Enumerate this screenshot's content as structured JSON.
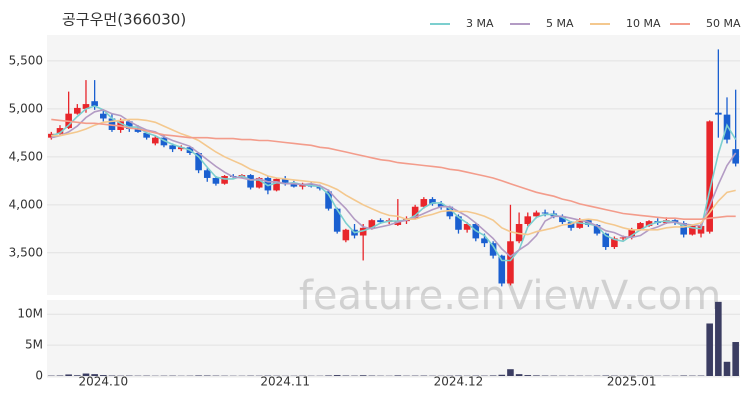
{
  "chart_data": {
    "type": "candlestick",
    "title": "공구우먼(366030)",
    "watermark": "feature.enViewV.com",
    "categories": [
      null,
      null,
      null,
      null,
      null,
      null,
      "2024.10",
      null,
      null,
      null,
      null,
      null,
      null,
      null,
      null,
      null,
      null,
      null,
      null,
      null,
      null,
      null,
      null,
      null,
      null,
      null,
      null,
      "2024.11",
      null,
      null,
      null,
      null,
      null,
      null,
      null,
      null,
      null,
      null,
      null,
      null,
      null,
      null,
      null,
      null,
      null,
      null,
      null,
      "2024.12",
      null,
      null,
      null,
      null,
      null,
      null,
      null,
      null,
      null,
      null,
      null,
      null,
      null,
      null,
      null,
      null,
      null,
      null,
      null,
      "2025.01",
      null,
      null,
      null,
      null,
      null,
      null,
      null,
      null,
      null,
      null,
      null,
      null
    ],
    "open": [
      4700,
      4740,
      4800,
      4950,
      5000,
      5080,
      4950,
      4900,
      4780,
      4870,
      4790,
      4750,
      4640,
      4700,
      4620,
      4580,
      4600,
      4540,
      4360,
      4280,
      4220,
      4300,
      4290,
      4310,
      4180,
      4280,
      4150,
      4270,
      4230,
      4190,
      4220,
      4190,
      4140,
      3960,
      3630,
      3740,
      3680,
      3760,
      3840,
      3820,
      3790,
      3830,
      3860,
      3980,
      4060,
      4010,
      3980,
      3880,
      3740,
      3800,
      3650,
      3600,
      3470,
      3180,
      3620,
      3800,
      3880,
      3920,
      3910,
      3880,
      3820,
      3760,
      3840,
      3790,
      3700,
      3560,
      3650,
      3660,
      3740,
      3780,
      3830,
      3810,
      3840,
      3810,
      3690,
      3700,
      3720,
      4960,
      4940,
      4580
    ],
    "high": [
      4760,
      4830,
      5180,
      5050,
      5300,
      5300,
      4980,
      4950,
      4900,
      4880,
      4830,
      4760,
      4720,
      4730,
      4640,
      4620,
      4610,
      4550,
      4380,
      4300,
      4310,
      4320,
      4320,
      4320,
      4290,
      4300,
      4280,
      4300,
      4250,
      4230,
      4240,
      4210,
      4160,
      3970,
      3750,
      3800,
      3800,
      3850,
      3860,
      3860,
      4060,
      3880,
      4000,
      4080,
      4080,
      4040,
      3990,
      3900,
      3820,
      3810,
      3700,
      3620,
      3480,
      4000,
      3920,
      3920,
      3940,
      3950,
      3940,
      3900,
      3830,
      3860,
      3850,
      3800,
      3710,
      3670,
      3680,
      3760,
      3820,
      3840,
      3860,
      3870,
      3850,
      3830,
      3790,
      3800,
      4880,
      5620,
      5120,
      5200
    ],
    "low": [
      4680,
      4730,
      4790,
      4940,
      4960,
      4990,
      4870,
      4760,
      4750,
      4760,
      4750,
      4680,
      4620,
      4600,
      4550,
      4560,
      4520,
      4330,
      4240,
      4200,
      4210,
      4270,
      4280,
      4160,
      4170,
      4110,
      4140,
      4200,
      4180,
      4160,
      4180,
      4150,
      3940,
      3700,
      3610,
      3650,
      3420,
      3740,
      3800,
      3800,
      3780,
      3800,
      3850,
      3960,
      3990,
      3950,
      3850,
      3700,
      3710,
      3620,
      3560,
      3440,
      3150,
      3160,
      3600,
      3780,
      3860,
      3880,
      3860,
      3800,
      3730,
      3750,
      3770,
      3680,
      3530,
      3540,
      3630,
      3640,
      3730,
      3770,
      3790,
      3800,
      3790,
      3660,
      3680,
      3660,
      3700,
      4700,
      4640,
      4400
    ],
    "close": [
      4740,
      4800,
      4950,
      5010,
      5050,
      5030,
      4900,
      4780,
      4870,
      4790,
      4760,
      4700,
      4700,
      4620,
      4580,
      4600,
      4540,
      4360,
      4280,
      4220,
      4300,
      4290,
      4310,
      4180,
      4280,
      4150,
      4270,
      4230,
      4190,
      4220,
      4190,
      4170,
      3960,
      3720,
      3740,
      3680,
      3760,
      3840,
      3820,
      3840,
      3830,
      3860,
      3980,
      4060,
      4010,
      3980,
      3880,
      3740,
      3800,
      3650,
      3600,
      3470,
      3180,
      3620,
      3800,
      3880,
      3920,
      3910,
      3880,
      3820,
      3760,
      3840,
      3790,
      3700,
      3560,
      3650,
      3660,
      3740,
      3810,
      3830,
      3810,
      3840,
      3810,
      3690,
      3780,
      3780,
      4870,
      4940,
      4680,
      4430
    ],
    "up_color": "#e8262b",
    "down_color": "#1a5fd0",
    "ylim": [
      3060,
      5770
    ],
    "yticks": [
      {
        "value": 3500,
        "label": "3,500"
      },
      {
        "value": 4000,
        "label": "4,000"
      },
      {
        "value": 4500,
        "label": "4,500"
      },
      {
        "value": 5000,
        "label": "5,000"
      },
      {
        "value": 5500,
        "label": "5,500"
      }
    ],
    "grid": true,
    "legend": "top-right",
    "series": [
      {
        "name": "3 MA",
        "color": "#7ccfcf",
        "values": [
          4720,
          4750,
          4830,
          4920,
          5000,
          5030,
          4990,
          4900,
          4850,
          4810,
          4810,
          4750,
          4720,
          4670,
          4630,
          4600,
          4570,
          4500,
          4390,
          4290,
          4270,
          4270,
          4300,
          4260,
          4260,
          4200,
          4230,
          4220,
          4230,
          4210,
          4200,
          4190,
          4110,
          3950,
          3810,
          3710,
          3730,
          3760,
          3810,
          3830,
          3830,
          3840,
          3890,
          3970,
          4020,
          4020,
          3960,
          3870,
          3810,
          3730,
          3680,
          3570,
          3420,
          3420,
          3530,
          3770,
          3870,
          3900,
          3900,
          3870,
          3820,
          3810,
          3800,
          3780,
          3680,
          3640,
          3620,
          3680,
          3740,
          3790,
          3820,
          3830,
          3820,
          3780,
          3760,
          3750,
          4150,
          4530,
          4830,
          4680
        ]
      },
      {
        "name": "5 MA",
        "color": "#b39bc4",
        "values": [
          4700,
          4720,
          4760,
          4820,
          4910,
          4970,
          4990,
          4950,
          4930,
          4870,
          4820,
          4780,
          4760,
          4710,
          4670,
          4640,
          4610,
          4540,
          4470,
          4400,
          4340,
          4290,
          4280,
          4260,
          4270,
          4240,
          4240,
          4220,
          4220,
          4210,
          4220,
          4200,
          4150,
          4050,
          3960,
          3850,
          3770,
          3750,
          3770,
          3790,
          3820,
          3840,
          3870,
          3910,
          3950,
          3980,
          3980,
          3930,
          3880,
          3810,
          3730,
          3650,
          3540,
          3460,
          3530,
          3590,
          3680,
          3830,
          3880,
          3880,
          3860,
          3840,
          3820,
          3780,
          3730,
          3710,
          3670,
          3660,
          3680,
          3740,
          3770,
          3810,
          3820,
          3800,
          3790,
          3780,
          3990,
          4210,
          4410,
          4540
        ]
      },
      {
        "name": "10 MA",
        "color": "#f4c88e",
        "values": [
          4720,
          4720,
          4740,
          4760,
          4790,
          4830,
          4860,
          4870,
          4880,
          4890,
          4890,
          4880,
          4860,
          4820,
          4780,
          4740,
          4710,
          4670,
          4610,
          4550,
          4500,
          4460,
          4420,
          4370,
          4340,
          4300,
          4280,
          4270,
          4260,
          4250,
          4240,
          4230,
          4200,
          4160,
          4100,
          4050,
          4000,
          3960,
          3920,
          3890,
          3880,
          3850,
          3850,
          3880,
          3900,
          3930,
          3940,
          3930,
          3930,
          3910,
          3880,
          3840,
          3760,
          3720,
          3700,
          3690,
          3720,
          3740,
          3760,
          3790,
          3800,
          3840,
          3850,
          3840,
          3810,
          3790,
          3760,
          3740,
          3740,
          3740,
          3740,
          3760,
          3770,
          3770,
          3790,
          3810,
          3920,
          4040,
          4130,
          4150
        ]
      },
      {
        "name": "50 MA",
        "color": "#f39c8b",
        "values": [
          4890,
          4880,
          4870,
          4860,
          4850,
          4850,
          4840,
          4830,
          4820,
          4800,
          4790,
          4770,
          4750,
          4730,
          4720,
          4710,
          4700,
          4700,
          4700,
          4690,
          4690,
          4690,
          4680,
          4680,
          4670,
          4670,
          4660,
          4650,
          4640,
          4630,
          4620,
          4600,
          4590,
          4570,
          4550,
          4530,
          4510,
          4490,
          4470,
          4460,
          4440,
          4430,
          4420,
          4410,
          4400,
          4390,
          4370,
          4360,
          4340,
          4320,
          4300,
          4280,
          4250,
          4220,
          4190,
          4160,
          4130,
          4110,
          4090,
          4060,
          4040,
          4010,
          3990,
          3970,
          3950,
          3930,
          3910,
          3900,
          3890,
          3880,
          3870,
          3860,
          3860,
          3850,
          3850,
          3850,
          3860,
          3870,
          3880,
          3880
        ]
      }
    ],
    "volume": {
      "color": "#3b3d62",
      "ylim": [
        0,
        12300000
      ],
      "yticks": [
        0,
        {
          "value": 5000000,
          "label": "5M"
        },
        {
          "value": 10000000,
          "label": "10M"
        }
      ],
      "values": [
        60000,
        80000,
        250000,
        120000,
        400000,
        300000,
        150000,
        80000,
        60000,
        70000,
        50000,
        60000,
        40000,
        50000,
        60000,
        40000,
        50000,
        90000,
        80000,
        60000,
        50000,
        40000,
        40000,
        60000,
        50000,
        70000,
        50000,
        40000,
        40000,
        50000,
        40000,
        40000,
        90000,
        150000,
        80000,
        60000,
        120000,
        70000,
        50000,
        40000,
        100000,
        50000,
        60000,
        70000,
        50000,
        40000,
        60000,
        80000,
        50000,
        70000,
        60000,
        90000,
        200000,
        1100000,
        300000,
        150000,
        100000,
        70000,
        60000,
        50000,
        60000,
        50000,
        40000,
        50000,
        80000,
        60000,
        40000,
        50000,
        60000,
        50000,
        40000,
        50000,
        40000,
        80000,
        60000,
        70000,
        8500000,
        12000000,
        2300000,
        5500000
      ]
    }
  }
}
